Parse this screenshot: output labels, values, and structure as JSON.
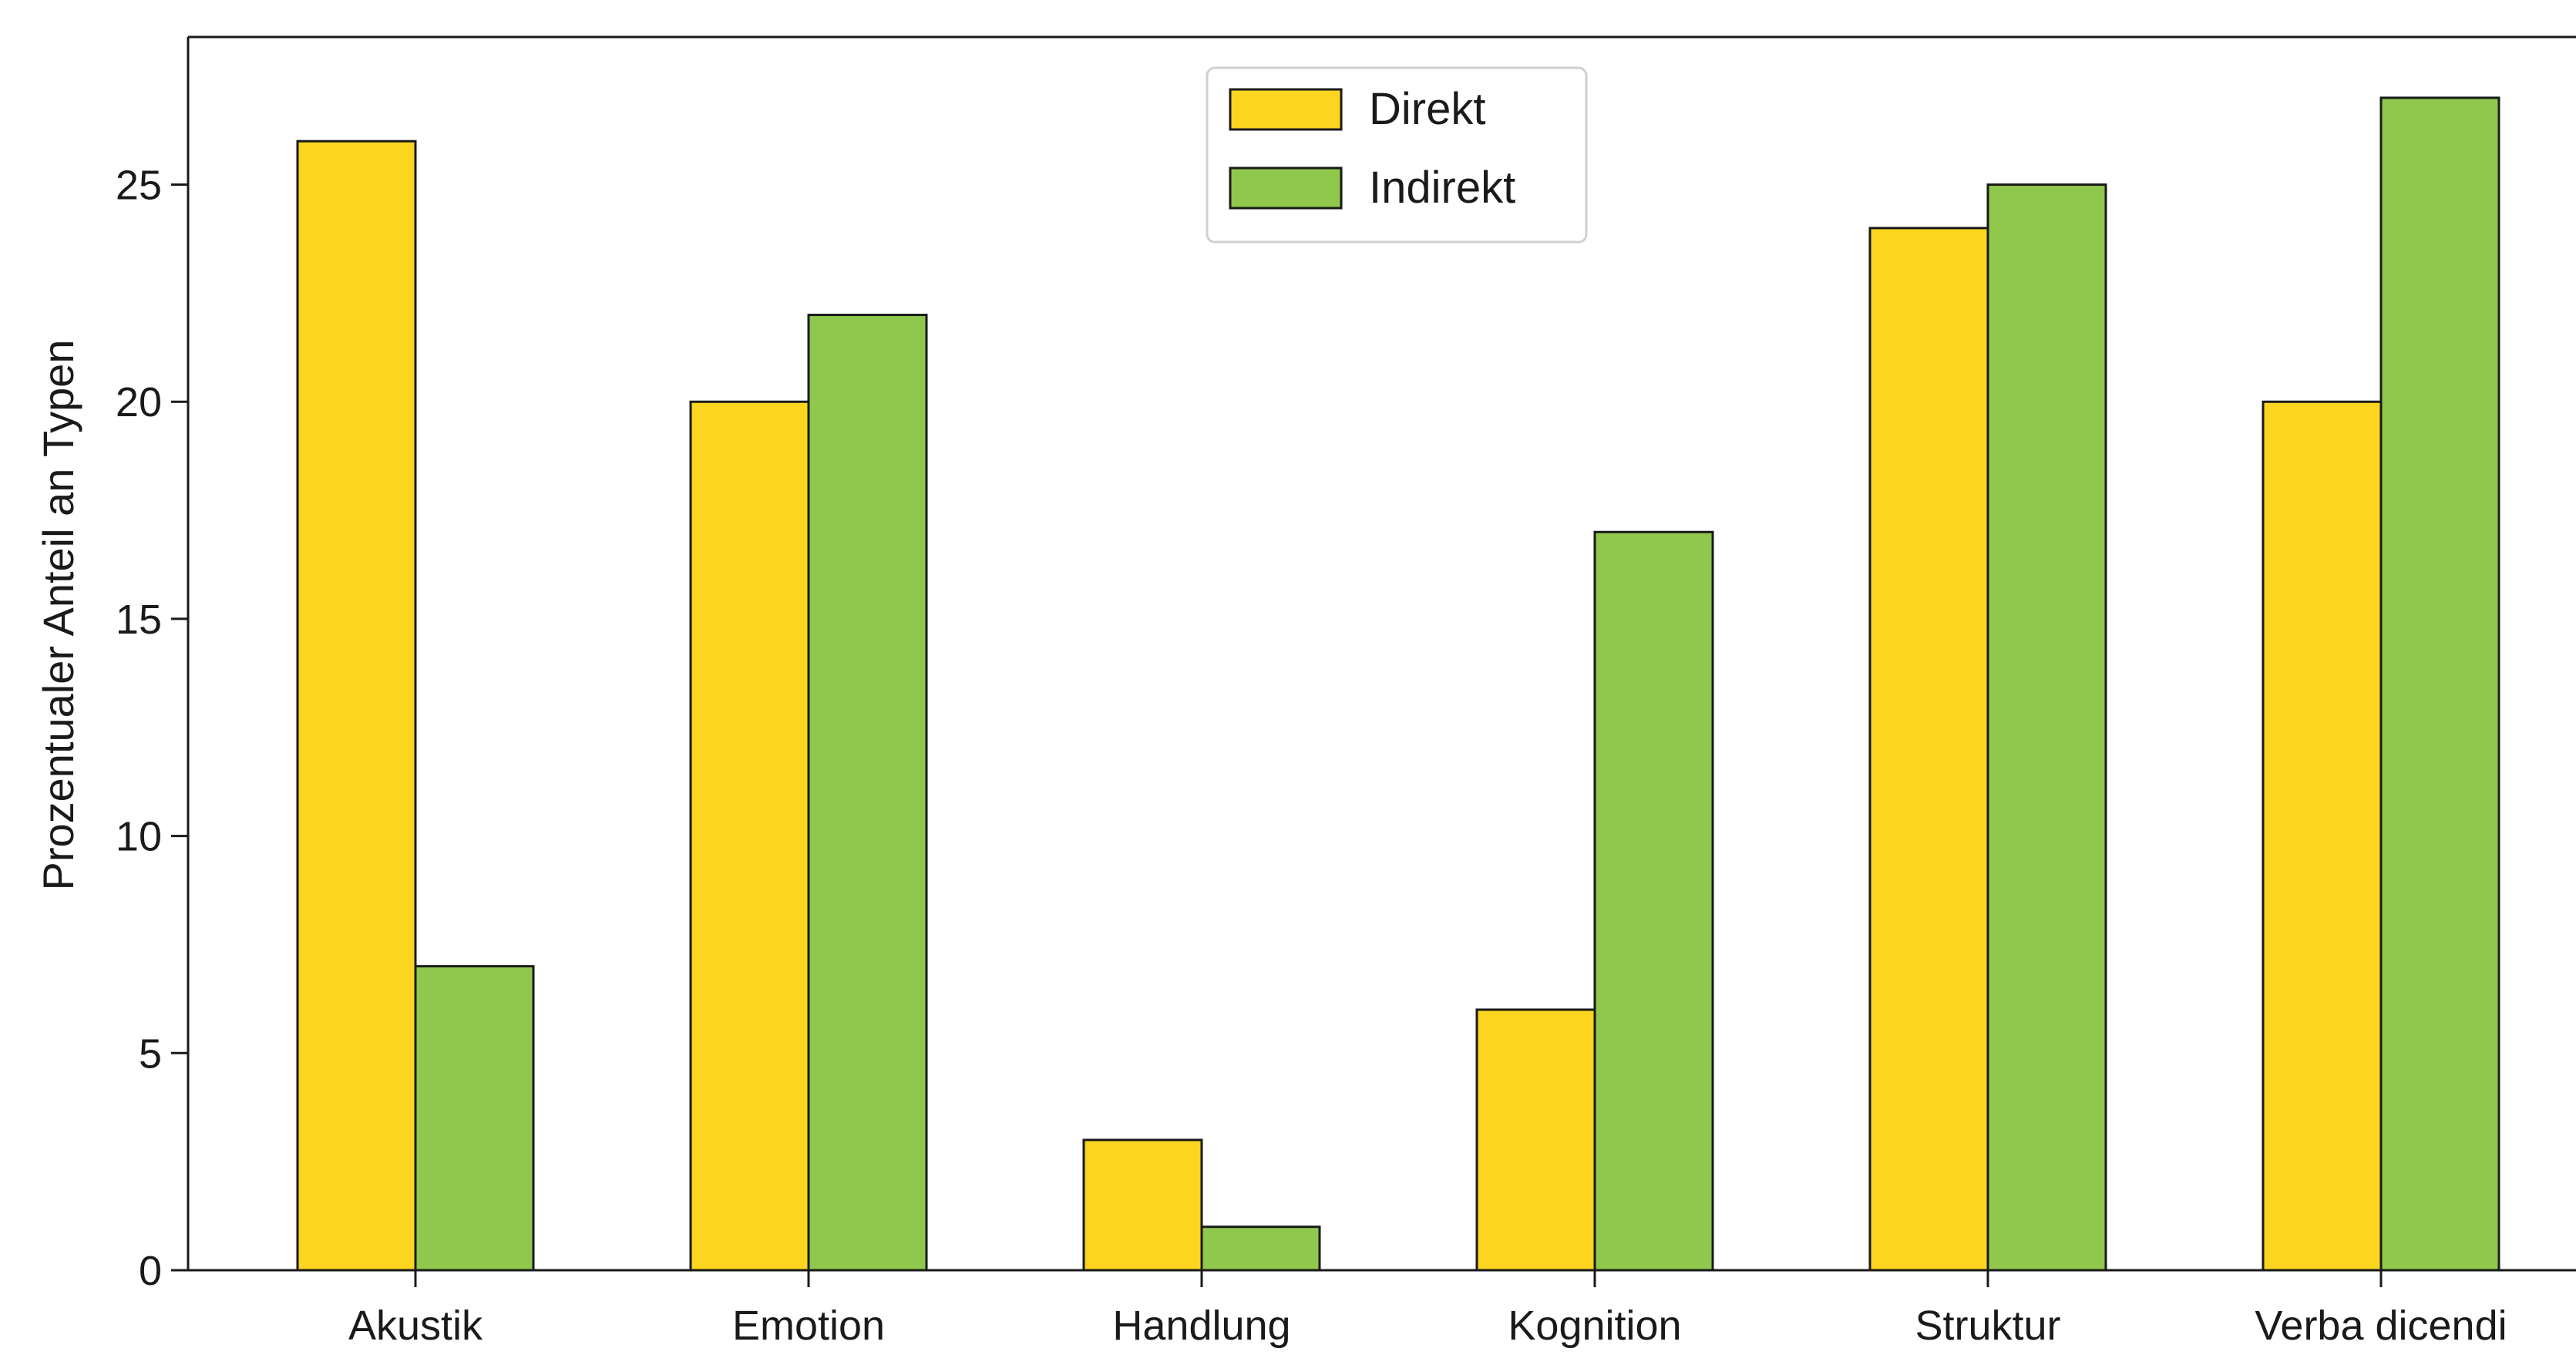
{
  "chart_data": {
    "type": "bar",
    "title": "",
    "xlabel": "",
    "ylabel": "Prozentualer Anteil an Typen",
    "categories": [
      "Akustik",
      "Emotion",
      "Handlung",
      "Kognition",
      "Struktur",
      "Verba dicendi"
    ],
    "series": [
      {
        "name": "Direkt",
        "color": "#FBD520",
        "values": [
          26,
          20,
          3,
          6,
          24,
          20
        ]
      },
      {
        "name": "Indirekt",
        "color": "#8FC84C",
        "values": [
          7,
          22,
          1,
          17,
          25,
          27
        ]
      }
    ],
    "ylim": [
      0,
      28.4
    ],
    "yticks": [
      0,
      5,
      10,
      15,
      20,
      25
    ],
    "grid": false,
    "legend_position": "top-center"
  }
}
